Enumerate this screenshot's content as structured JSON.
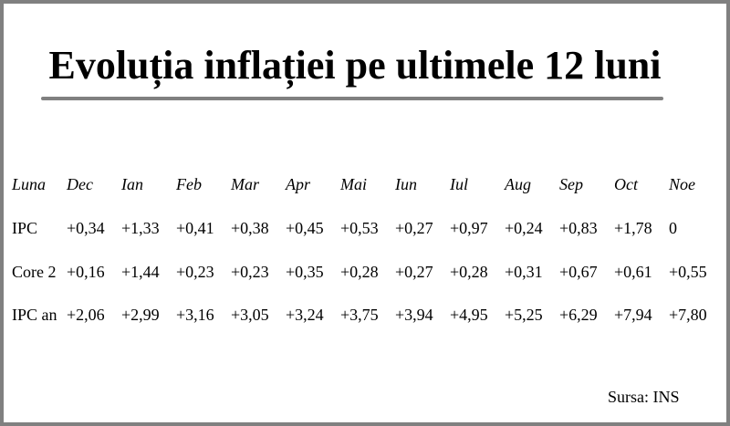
{
  "title": "Evoluția inflației pe ultimele 12 luni",
  "table": {
    "header": [
      "Luna",
      "Dec",
      "Ian",
      "Feb",
      "Mar",
      "Apr",
      "Mai",
      "Iun",
      "Iul",
      "Aug",
      "Sep",
      "Oct",
      "Noe"
    ],
    "rows": [
      [
        "IPC",
        "+0,34",
        "+1,33",
        "+0,41",
        "+0,38",
        "+0,45",
        "+0,53",
        "+0,27",
        "+0,97",
        "+0,24",
        "+0,83",
        "+1,78",
        "0"
      ],
      [
        "Core 2",
        "+0,16",
        "+1,44",
        "+0,23",
        "+0,23",
        "+0,35",
        "+0,28",
        "+0,27",
        "+0,28",
        "+0,31",
        "+0,67",
        "+0,61",
        "+0,55"
      ],
      [
        "IPC an",
        "+2,06",
        "+2,99",
        "+3,16",
        "+3,05",
        "+3,24",
        "+3,75",
        "+3,94",
        "+4,95",
        "+5,25",
        "+6,29",
        "+7,94",
        "+7,80"
      ]
    ]
  },
  "source": "Sursa: INS"
}
